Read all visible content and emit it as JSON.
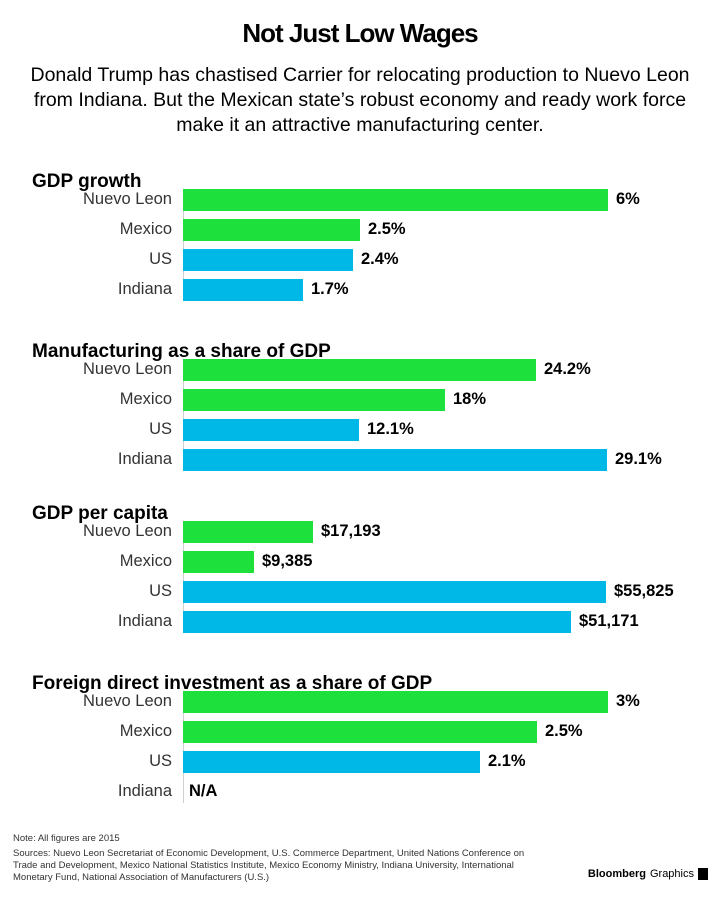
{
  "title": "Not Just Low Wages",
  "subtitle": "Donald Trump has chastised Carrier for relocating production to Nuevo Leon from Indiana. But the Mexican state’s robust economy and ready work force make it an attractive manufacturing center.",
  "colors": {
    "mexico": "#1ee03c",
    "us": "#00b8e8"
  },
  "chart_data": [
    {
      "type": "bar",
      "title": "GDP growth",
      "categories": [
        "Nuevo Leon",
        "Mexico",
        "US",
        "Indiana"
      ],
      "values": [
        6,
        2.5,
        2.4,
        1.7
      ],
      "labels": [
        "6%",
        "2.5%",
        "2.4%",
        "1.7%"
      ],
      "group": [
        "mexico",
        "mexico",
        "us",
        "us"
      ],
      "xlim": [
        0,
        6.3
      ]
    },
    {
      "type": "bar",
      "title": "Manufacturing as a share of GDP",
      "categories": [
        "Nuevo Leon",
        "Mexico",
        "US",
        "Indiana"
      ],
      "values": [
        24.2,
        18,
        12.1,
        29.1
      ],
      "labels": [
        "24.2%",
        "18%",
        "12.1%",
        "29.1%"
      ],
      "group": [
        "mexico",
        "mexico",
        "us",
        "us"
      ],
      "xlim": [
        0,
        30.6
      ]
    },
    {
      "type": "bar",
      "title": "GDP per capita",
      "categories": [
        "Nuevo Leon",
        "Mexico",
        "US",
        "Indiana"
      ],
      "values": [
        17193,
        9385,
        55825,
        51171
      ],
      "labels": [
        "$17,193",
        "$9,385",
        "$55,825",
        "$51,171"
      ],
      "group": [
        "mexico",
        "mexico",
        "us",
        "us"
      ],
      "xlim": [
        0,
        58800
      ]
    },
    {
      "type": "bar",
      "title": "Foreign direct investment as a share of GDP",
      "categories": [
        "Nuevo Leon",
        "Mexico",
        "US",
        "Indiana"
      ],
      "values": [
        3,
        2.5,
        2.1,
        null
      ],
      "labels": [
        "3%",
        "2.5%",
        "2.1%",
        "N/A"
      ],
      "group": [
        "mexico",
        "mexico",
        "us",
        "us"
      ],
      "xlim": [
        0,
        3.15
      ]
    }
  ],
  "note": "Note: All figures are 2015",
  "sources": "Sources: Nuevo Leon Secretariat of Economic Development, U.S. Commerce Department, United Nations Conference on Trade and Development, Mexico National Statistics Institute, Mexico Economy Ministry, Indiana University, International Monetary Fund, National Association of Manufacturers (U.S.)",
  "brand": {
    "bold": "Bloomberg",
    "light": "Graphics"
  }
}
